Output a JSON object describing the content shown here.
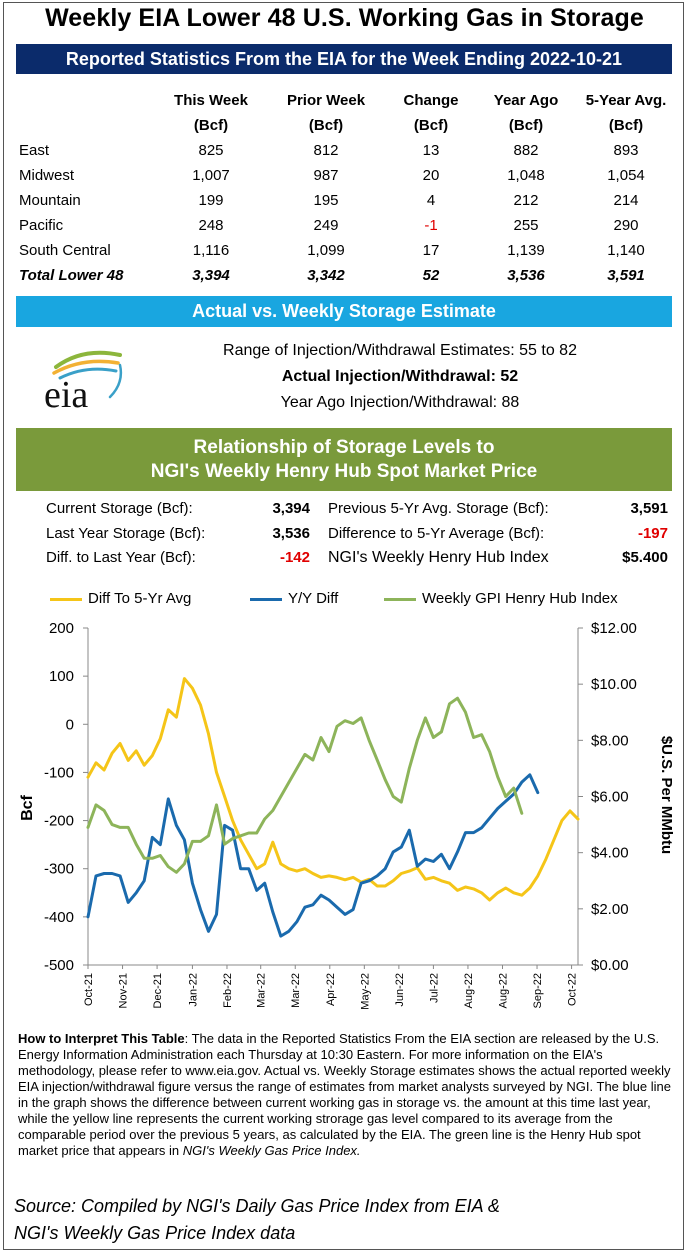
{
  "title": "Weekly EIA Lower 48 U.S. Working Gas in Storage",
  "stats_header": "Reported Statistics From the EIA for the Week Ending 2022-10-21",
  "table": {
    "columns": [
      {
        "name": "This Week",
        "unit": "(Bcf)"
      },
      {
        "name": "Prior Week",
        "unit": "(Bcf)"
      },
      {
        "name": "Change",
        "unit": "(Bcf)"
      },
      {
        "name": "Year Ago",
        "unit": "(Bcf)"
      },
      {
        "name": "5-Year Avg.",
        "unit": "(Bcf)"
      }
    ],
    "rows": [
      {
        "region": "East",
        "values": [
          "825",
          "812",
          "13",
          "882",
          "893"
        ]
      },
      {
        "region": "Midwest",
        "values": [
          "1,007",
          "987",
          "20",
          "1,048",
          "1,054"
        ]
      },
      {
        "region": "Mountain",
        "values": [
          "199",
          "195",
          "4",
          "212",
          "214"
        ]
      },
      {
        "region": "Pacific",
        "values": [
          "248",
          "249",
          "-1",
          "255",
          "290"
        ]
      },
      {
        "region": "South Central",
        "values": [
          "1,116",
          "1,099",
          "17",
          "1,139",
          "1,140"
        ]
      }
    ],
    "total": {
      "region": "Total Lower 48",
      "values": [
        "3,394",
        "3,342",
        "52",
        "3,536",
        "3,591"
      ]
    }
  },
  "estimate_header": "Actual vs. Weekly Storage Estimate",
  "estimate": {
    "range": "Range of Injection/Withdrawal Estimates: 55 to 82",
    "actual": "Actual Injection/Withdrawal: 52",
    "year_ago": "Year Ago Injection/Withdrawal: 88"
  },
  "logo_text": "eia",
  "relationship_header_line1": "Relationship of Storage Levels to",
  "relationship_header_line2": "NGI's Weekly Henry Hub Spot Market Price",
  "relationship": {
    "current_storage_label": "Current Storage (Bcf):",
    "current_storage": "3,394",
    "last_year_label": "Last Year Storage (Bcf):",
    "last_year": "3,536",
    "diff_last_year_label": "Diff. to Last Year (Bcf):",
    "diff_last_year": "-142",
    "prev5_label": "Previous 5-Yr Avg. Storage (Bcf):",
    "prev5": "3,591",
    "diff5_label": "Difference to 5-Yr Average (Bcf):",
    "diff5": "-197",
    "hh_label": "NGI's Weekly Henry Hub Index",
    "hh": "$5.400"
  },
  "colors": {
    "diff5": "#f5c518",
    "yoy": "#1a6aad",
    "gpi": "#8db45a",
    "negative": "#e00000"
  },
  "chart_data": {
    "type": "line",
    "x_tick_labels": [
      "Oct-21",
      "Nov-21",
      "Dec-21",
      "Jan-22",
      "Feb-22",
      "Mar-22",
      "Mar-22",
      "Apr-22",
      "May-22",
      "Jun-22",
      "Jul-22",
      "Aug-22",
      "Aug-22",
      "Sep-22",
      "Oct-22"
    ],
    "x_week_index": [
      0,
      4.3,
      8.6,
      13,
      17.3,
      21.5,
      25.8,
      30.1,
      34.4,
      38.7,
      43,
      47.3,
      51.6,
      55.9,
      60.2
    ],
    "left_axis": {
      "label": "Bcf",
      "range": [
        -500,
        200
      ],
      "ticks": [
        "200",
        "100",
        "0",
        "-100",
        "-200",
        "-300",
        "-400",
        "-500"
      ]
    },
    "right_axis": {
      "label": "$U.S. Per MMbtu",
      "range": [
        0,
        12
      ],
      "ticks": [
        "$12.00",
        "$10.00",
        "$8.00",
        "$6.00",
        "$4.00",
        "$2.00",
        "$0.00"
      ]
    },
    "series": [
      {
        "name": "Diff To 5-Yr Avg",
        "axis": "left",
        "values": [
          -110,
          -80,
          -95,
          -60,
          -40,
          -75,
          -55,
          -85,
          -65,
          -30,
          30,
          15,
          95,
          75,
          40,
          -20,
          -100,
          -150,
          -200,
          -240,
          -270,
          -300,
          -290,
          -245,
          -290,
          -300,
          -305,
          -300,
          -310,
          -318,
          -315,
          -318,
          -323,
          -318,
          -328,
          -322,
          -336,
          -336,
          -325,
          -310,
          -305,
          -298,
          -322,
          -318,
          -325,
          -330,
          -345,
          -338,
          -342,
          -350,
          -365,
          -350,
          -340,
          -350,
          -355,
          -340,
          -315,
          -280,
          -240,
          -200,
          -180,
          -197
        ]
      },
      {
        "name": "Y/Y Diff",
        "axis": "left",
        "values": [
          -400,
          -315,
          -310,
          -310,
          -315,
          -370,
          -350,
          -325,
          -235,
          -250,
          -155,
          -210,
          -240,
          -330,
          -385,
          -430,
          -395,
          -210,
          -220,
          -300,
          -300,
          -345,
          -330,
          -390,
          -440,
          -430,
          -410,
          -380,
          -375,
          -355,
          -365,
          -380,
          -395,
          -385,
          -330,
          -325,
          -315,
          -300,
          -265,
          -255,
          -220,
          -295,
          -280,
          -285,
          -270,
          -300,
          -265,
          -225,
          -225,
          -215,
          -195,
          -175,
          -160,
          -145,
          -120,
          -105,
          -142
        ]
      },
      {
        "name": "Weekly GPI Henry Hub Index",
        "axis": "right",
        "values": [
          4.9,
          5.7,
          5.5,
          5.0,
          4.9,
          4.9,
          4.3,
          3.8,
          3.8,
          3.9,
          3.5,
          3.3,
          3.6,
          4.4,
          4.4,
          4.6,
          5.7,
          4.3,
          4.5,
          4.6,
          4.7,
          4.7,
          5.2,
          5.5,
          6.0,
          6.5,
          7.0,
          7.5,
          7.3,
          8.1,
          7.6,
          8.5,
          8.7,
          8.6,
          8.8,
          8.0,
          7.3,
          6.6,
          6.0,
          5.8,
          7.0,
          8.0,
          8.8,
          8.1,
          8.3,
          9.3,
          9.5,
          9.0,
          8.1,
          8.2,
          7.6,
          6.7,
          6.0,
          6.3,
          5.4
        ]
      }
    ],
    "xlabel": "",
    "ylabel": "Bcf",
    "y2label": "$U.S. Per MMbtu",
    "legend_position": "top",
    "grid": false
  },
  "note_bold": "How to Interpret This Table",
  "note_text": ": The data in the Reported Statistics From the EIA section are released by the U.S. Energy Information Administration each Thursday at 10:30 Eastern. For more information on the EIA's methodology, please refer to www.eia.gov. Actual vs. Weekly Storage estimates shows the actual reported weekly EIA injection/withdrawal  figure versus the range of estimates from market analysts surveyed by NGI. The blue line in the graph shows the difference between current working gas in storage vs. the amount at this time last year, while the yellow line represents the current working strorage gas level compared to its average from the comparable period over the previous 5 years, as calculated by the EIA. The green line is the Henry Hub spot market price that appears in ",
  "note_italic": "NGI's Weekly Gas Price Index.",
  "source_line1": "Source: Compiled by NGI's Daily Gas Price Index from EIA &",
  "source_line2": "NGI's Weekly Gas Price Index data"
}
